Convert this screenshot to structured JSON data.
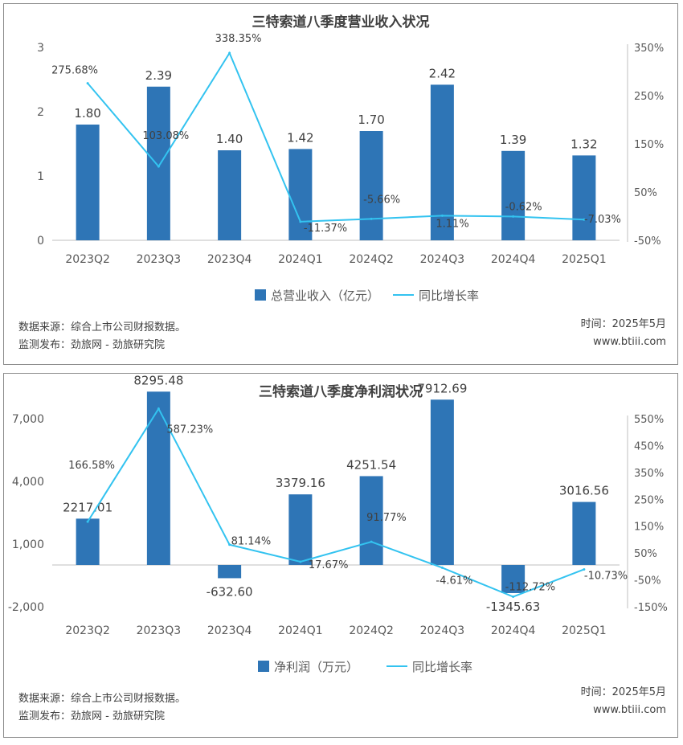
{
  "colors": {
    "bar": "#2e75b6",
    "line": "#33c3f0",
    "axis": "#bfbfbf",
    "text": "#595959"
  },
  "charts": [
    {
      "title": "三特索道八季度营业收入状况",
      "source": "数据来源：综合上市公司财报数据。",
      "publisher": "监测发布：劲旅网 - 劲旅研究院",
      "date": "时间：2025年5月",
      "site": "www.btiii.com"
    },
    {
      "title": "三特索道八季度净利润状况",
      "source": "数据来源：综合上市公司财报数据。",
      "publisher": "监测发布：劲旅网 - 劲旅研究院",
      "date": "时间：2025年5月",
      "site": "www.btiii.com"
    }
  ],
  "chart_data": [
    {
      "type": "bar",
      "title": "三特索道八季度营业收入状况",
      "categories": [
        "2023Q2",
        "2023Q3",
        "2023Q4",
        "2024Q1",
        "2024Q2",
        "2024Q3",
        "2024Q4",
        "2025Q1"
      ],
      "series": [
        {
          "name": "总营业收入（亿元）",
          "type": "bar",
          "axis": "left",
          "values": [
            1.8,
            2.39,
            1.4,
            1.42,
            1.7,
            2.42,
            1.39,
            1.32
          ],
          "labels": [
            "1.80",
            "2.39",
            "1.40",
            "1.42",
            "1.70",
            "2.42",
            "1.39",
            "1.32"
          ]
        },
        {
          "name": "同比增长率",
          "type": "line",
          "axis": "right",
          "values": [
            275.68,
            103.08,
            338.35,
            -11.37,
            -5.66,
            1.11,
            -0.62,
            -7.03
          ],
          "labels": [
            "275.68%",
            "103.08%",
            "338.35%",
            "-11.37%",
            "-5.66%",
            "1.11%",
            "-0.62%",
            "-7.03%"
          ]
        }
      ],
      "y_left": {
        "min": 0,
        "max": 3,
        "ticks": [
          "0",
          "1",
          "2",
          "3"
        ]
      },
      "y_right": {
        "min": -50,
        "max": 350,
        "ticks": [
          "-50%",
          "50%",
          "150%",
          "250%",
          "350%"
        ]
      },
      "legend": "bottom"
    },
    {
      "type": "bar",
      "title": "三特索道八季度净利润状况",
      "categories": [
        "2023Q2",
        "2023Q3",
        "2023Q4",
        "2024Q1",
        "2024Q2",
        "2024Q3",
        "2024Q4",
        "2025Q1"
      ],
      "series": [
        {
          "name": "净利润（万元）",
          "type": "bar",
          "axis": "left",
          "values": [
            2217.01,
            8295.48,
            -632.6,
            3379.16,
            4251.54,
            7912.69,
            -1345.63,
            3016.56
          ],
          "labels": [
            "2217.01",
            "8295.48",
            "-632.60",
            "3379.16",
            "4251.54",
            "7912.69",
            "-1345.63",
            "3016.56"
          ]
        },
        {
          "name": "同比增长率",
          "type": "line",
          "axis": "right",
          "values": [
            166.58,
            587.23,
            81.14,
            17.67,
            91.77,
            -4.61,
            -112.72,
            -10.73
          ],
          "labels": [
            "166.58%",
            "587.23%",
            "81.14%",
            "17.67%",
            "91.77%",
            "-4.61%",
            "-112.72%",
            "-10.73%"
          ]
        }
      ],
      "y_left": {
        "min": -2000,
        "max": 7000,
        "ticks": [
          "-2,000",
          "1,000",
          "4,000",
          "7,000"
        ],
        "tick_values": [
          -2000,
          1000,
          4000,
          7000
        ]
      },
      "y_right": {
        "min": -150,
        "max": 550,
        "ticks": [
          "-150%",
          "-50%",
          "50%",
          "150%",
          "250%",
          "350%",
          "450%",
          "550%"
        ]
      },
      "legend": "bottom"
    }
  ]
}
